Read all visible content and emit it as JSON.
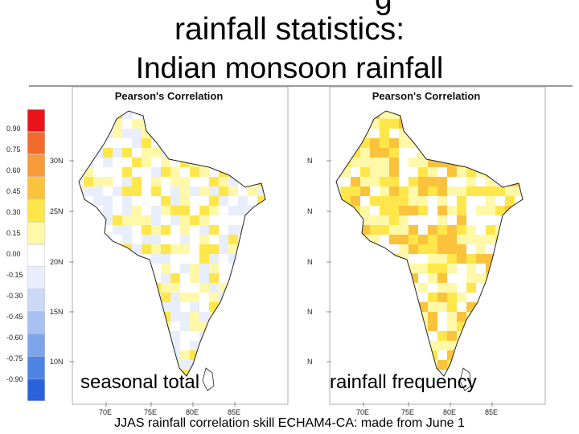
{
  "title_line1": "rainfall statistics:",
  "title_line2": "Indian monsoon rainfall",
  "title_partial": "g",
  "colorbar": {
    "ticks": [
      "0.90",
      "0.75",
      "0.60",
      "0.45",
      "0.30",
      "0.15",
      "0.00",
      "-0.15",
      "-0.30",
      "-0.45",
      "-0.60",
      "-0.75",
      "-0.90"
    ],
    "colors": [
      "#e8141a",
      "#f26a2e",
      "#f79a3a",
      "#fbc23c",
      "#ffe64a",
      "#fff8a8",
      "#ffffff",
      "#e8eefc",
      "#cbd8f6",
      "#a8c1f0",
      "#7ea5ea",
      "#4f84e4",
      "#2a62dc"
    ]
  },
  "panels": [
    {
      "title": "Pearson's Correlation",
      "caption": "seasonal total",
      "lat_labels": [
        "30N",
        "25N",
        "20N",
        "15N",
        "10N"
      ],
      "lon_labels": [
        "70E",
        "75E",
        "80E",
        "85E"
      ]
    },
    {
      "title": "Pearson's Correlation",
      "caption": "rainfall frequency",
      "lat_labels": [
        "N",
        "N",
        "N",
        "N",
        "N"
      ],
      "lon_labels": [
        "70E",
        "75E",
        "80E",
        "85E"
      ]
    }
  ],
  "footer": "JJAS rainfall correlation skill ECHAM4-CA:  made from June 1"
}
